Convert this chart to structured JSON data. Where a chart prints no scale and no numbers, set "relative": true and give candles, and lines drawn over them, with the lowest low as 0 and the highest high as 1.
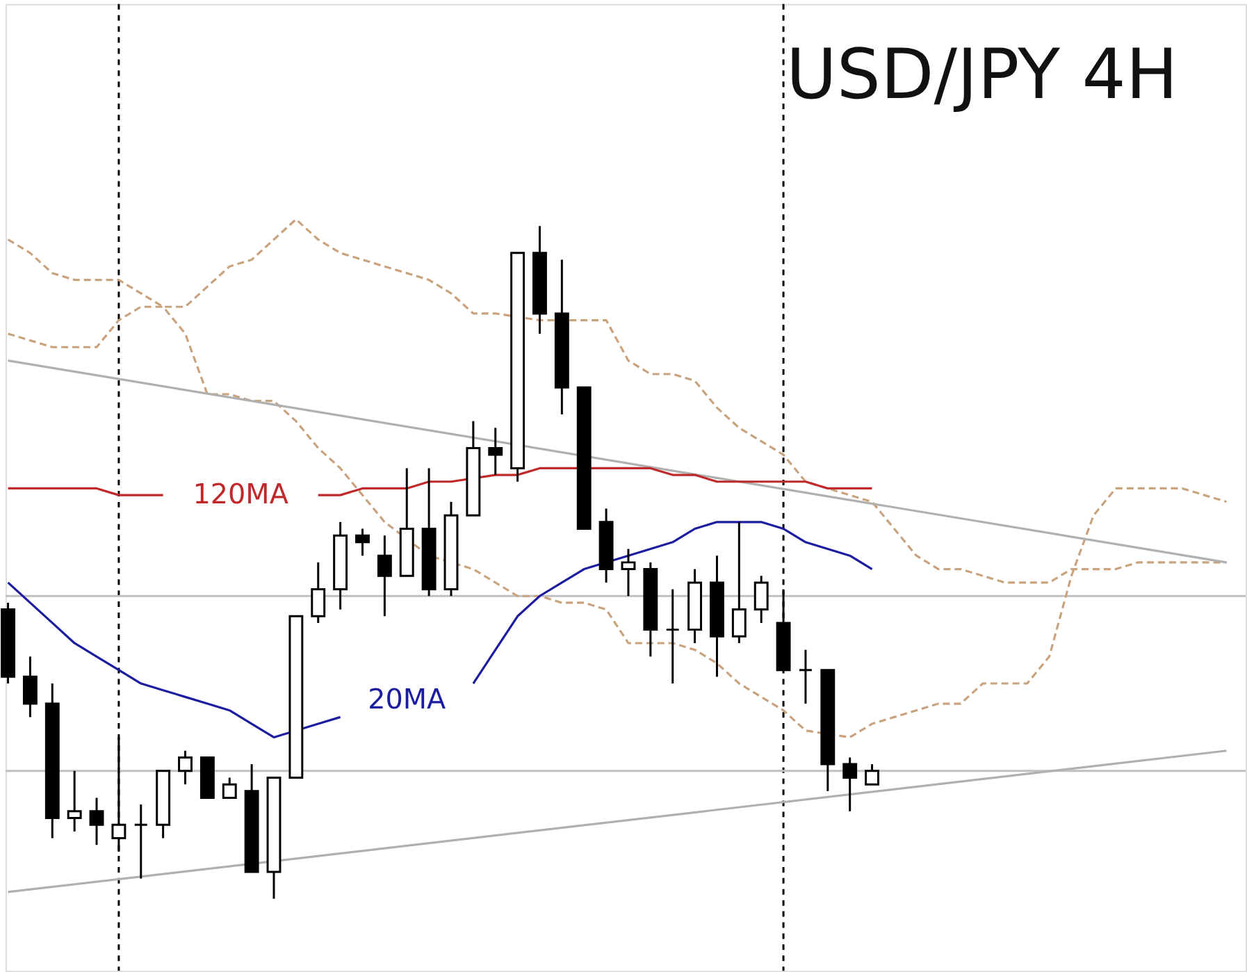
{
  "chart_data": {
    "type": "candlestick",
    "title": "USD/JPY 4H",
    "relative": true,
    "legend": false,
    "categories": [
      null,
      null,
      null,
      null,
      null,
      null,
      null,
      null,
      null,
      null,
      null,
      null,
      null,
      null,
      null,
      null,
      null,
      null,
      null,
      null,
      null,
      null,
      null,
      null,
      null,
      null,
      null,
      null,
      null,
      null,
      null,
      null,
      null,
      null,
      null,
      null,
      null,
      null,
      null,
      null,
      null,
      null,
      null,
      null,
      null,
      null,
      null,
      null,
      null,
      null,
      null,
      null,
      null,
      null,
      null,
      null
    ],
    "ohlc": [
      [
        0.43,
        0.44,
        0.32,
        0.33
      ],
      [
        0.33,
        0.36,
        0.27,
        0.29
      ],
      [
        0.29,
        0.32,
        0.09,
        0.12
      ],
      [
        0.12,
        0.19,
        0.1,
        0.13
      ],
      [
        0.13,
        0.15,
        0.08,
        0.11
      ],
      [
        0.09,
        0.24,
        0.07,
        0.11
      ],
      [
        0.11,
        0.14,
        0.03,
        0.11
      ],
      [
        0.11,
        0.19,
        0.09,
        0.19
      ],
      [
        0.19,
        0.22,
        0.17,
        0.21
      ],
      [
        0.21,
        0.21,
        0.15,
        0.15
      ],
      [
        0.15,
        0.18,
        0.15,
        0.17
      ],
      [
        0.16,
        0.2,
        0.04,
        0.04
      ],
      [
        0.04,
        0.18,
        0,
        0.18
      ],
      [
        0.18,
        0.42,
        0.18,
        0.42
      ],
      [
        0.42,
        0.5,
        0.41,
        0.46
      ],
      [
        0.46,
        0.56,
        0.43,
        0.54
      ],
      [
        0.54,
        0.55,
        0.51,
        0.53
      ],
      [
        0.51,
        0.54,
        0.42,
        0.48
      ],
      [
        0.48,
        0.64,
        0.48,
        0.55
      ],
      [
        0.55,
        0.64,
        0.45,
        0.46
      ],
      [
        0.46,
        0.59,
        0.45,
        0.57
      ],
      [
        0.57,
        0.71,
        0.57,
        0.67
      ],
      [
        0.67,
        0.7,
        0.63,
        0.66
      ],
      [
        0.64,
        0.96,
        0.62,
        0.96
      ],
      [
        0.96,
        1,
        0.84,
        0.87
      ],
      [
        0.87,
        0.95,
        0.72,
        0.76
      ],
      [
        0.76,
        0.76,
        0.55,
        0.55
      ],
      [
        0.56,
        0.58,
        0.47,
        0.49
      ],
      [
        0.49,
        0.52,
        0.45,
        0.5
      ],
      [
        0.49,
        0.5,
        0.36,
        0.4
      ],
      [
        0.4,
        0.46,
        0.32,
        0.4
      ],
      [
        0.4,
        0.49,
        0.38,
        0.47
      ],
      [
        0.47,
        0.51,
        0.33,
        0.39
      ],
      [
        0.39,
        0.56,
        0.38,
        0.43
      ],
      [
        0.43,
        0.48,
        0.41,
        0.47
      ],
      [
        0.41,
        0.46,
        0.34,
        0.34
      ],
      [
        0.34,
        0.37,
        0.29,
        0.34
      ],
      [
        0.34,
        0.34,
        0.16,
        0.2
      ],
      [
        0.2,
        0.21,
        0.13,
        0.18
      ],
      [
        0.17,
        0.2,
        0.17,
        0.19
      ],
      null,
      null,
      null,
      null,
      null,
      null,
      null,
      null,
      null,
      null,
      null,
      null,
      null,
      null,
      null,
      null
    ],
    "series": [
      {
        "type": "line",
        "line_style": "dashed",
        "color": "#c9a27e",
        "values": [
          0.98,
          0.96,
          0.93,
          0.92,
          0.92,
          0.92,
          0.9,
          0.88,
          0.88,
          0.91,
          0.94,
          0.95,
          0.98,
          1.01,
          0.98,
          0.96,
          0.95,
          0.94,
          0.93,
          0.92,
          0.9,
          0.87,
          0.87,
          null,
          0.86,
          null,
          0.86,
          0.86,
          0.8,
          0.78,
          0.78,
          0.77,
          0.73,
          0.7,
          0.68,
          0.66,
          0.62,
          0.61,
          0.6,
          0.59,
          0.55,
          0.51,
          0.49,
          0.49,
          0.48,
          0.47,
          0.47,
          0.47,
          0.49,
          0.49,
          0.49,
          0.5,
          0.5,
          0.5,
          0.5,
          0.5
        ]
      },
      {
        "type": "line",
        "line_style": "dashed",
        "color": "#c9a27e",
        "values": [
          0.84,
          0.83,
          0.82,
          0.82,
          0.82,
          0.86,
          0.88,
          0.88,
          0.84,
          0.75,
          0.75,
          0.74,
          0.74,
          0.71,
          0.67,
          0.64,
          0.6,
          0.56,
          null,
          0.51,
          null,
          0.49,
          0.47,
          0.45,
          0.45,
          0.44,
          0.44,
          0.43,
          0.38,
          0.38,
          0.38,
          0.37,
          0.35,
          0.32,
          0.3,
          0.28,
          0.25,
          null,
          0.24,
          0.26,
          0.27,
          0.28,
          0.29,
          0.29,
          0.32,
          0.32,
          0.32,
          0.36,
          0.48,
          0.57,
          0.61,
          0.61,
          0.61,
          0.61,
          0.6,
          0.59
        ]
      },
      {
        "type": "line",
        "line_style": "solid",
        "color": "#b0b0b0",
        "values": [
          0.8,
          null,
          null,
          null,
          null,
          null,
          null,
          null,
          null,
          null,
          null,
          null,
          null,
          null,
          null,
          null,
          null,
          null,
          null,
          null,
          null,
          null,
          null,
          null,
          null,
          null,
          null,
          null,
          null,
          null,
          null,
          null,
          null,
          null,
          null,
          null,
          null,
          null,
          null,
          null,
          null,
          null,
          null,
          null,
          null,
          null,
          null,
          null,
          null,
          null,
          null,
          null,
          null,
          null,
          null,
          0.5
        ]
      },
      {
        "type": "line",
        "line_style": "solid",
        "color": "#b0b0b0",
        "values": [
          0.01,
          null,
          null,
          null,
          null,
          null,
          null,
          null,
          null,
          null,
          null,
          null,
          null,
          null,
          null,
          null,
          null,
          null,
          null,
          null,
          null,
          null,
          null,
          null,
          null,
          null,
          null,
          null,
          null,
          null,
          null,
          null,
          null,
          null,
          null,
          null,
          null,
          null,
          null,
          null,
          null,
          null,
          null,
          null,
          null,
          null,
          null,
          null,
          null,
          null,
          null,
          null,
          null,
          null,
          null,
          0.22
        ]
      },
      {
        "name": "20MA",
        "type": "line",
        "line_style": "solid",
        "color": "#1c1ca0",
        "values": [
          0.47,
          0.44,
          0.41,
          0.38,
          0.36,
          0.34,
          0.32,
          0.31,
          0.3,
          0.29,
          0.28,
          0.26,
          0.24,
          null,
          0.26,
          0.27,
          null,
          null,
          null,
          null,
          null,
          0.32,
          0.37,
          0.42,
          0.45,
          0.47,
          0.49,
          null,
          0.51,
          0.52,
          0.53,
          0.55,
          0.56,
          0.56,
          0.56,
          0.55,
          0.53,
          0.52,
          0.51,
          0.49,
          null,
          null,
          null,
          null,
          null,
          null,
          null,
          null,
          null,
          null,
          null,
          null,
          null,
          null,
          null,
          null
        ]
      },
      {
        "name": "120MA",
        "type": "line",
        "line_style": "solid",
        "color": "#c0282a",
        "values": [
          0.61,
          0.61,
          0.61,
          0.61,
          0.61,
          0.6,
          0.6,
          0.6,
          null,
          null,
          null,
          null,
          null,
          null,
          0.6,
          0.6,
          0.61,
          0.61,
          0.61,
          0.62,
          0.62,
          null,
          0.63,
          0.63,
          0.64,
          0.64,
          null,
          0.64,
          0.64,
          0.64,
          0.63,
          0.63,
          0.62,
          0.62,
          0.62,
          0.62,
          0.62,
          0.61,
          0.61,
          0.61,
          null,
          null,
          null,
          null,
          null,
          null,
          null,
          null,
          null,
          null,
          null,
          null,
          null,
          null,
          null,
          null
        ]
      }
    ],
    "ref_lines": [
      {
        "axis": "y",
        "value": 0.45,
        "color": "#c0c0c0"
      },
      {
        "axis": "y",
        "value": 0.19,
        "color": "#c0c0c0"
      }
    ]
  }
}
